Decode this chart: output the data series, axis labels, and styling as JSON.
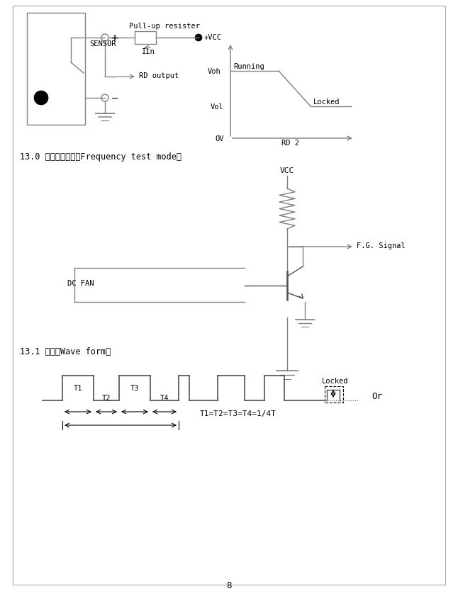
{
  "page_num": "8",
  "bg_color": "#ffffff",
  "line_color": "#808080",
  "dark_line_color": "#505050",
  "section1_label": "13.0 頻率測試方式（Frequency test mode）",
  "section2_label": "13.1 波形（Wave form）",
  "vcc_label": "VCC",
  "plus_label": "+",
  "minus_label": "—",
  "sensor_label": "SENSOR",
  "pullup_label": "Pull-up resister",
  "iin_label": "Iin",
  "rd_label": "RD output",
  "vcc_node_label": "+VCC",
  "voh_label": "Voh",
  "vol_label": "Vol",
  "ov_label": "OV",
  "running_label": "Running",
  "locked_label": "Locked",
  "rd2_label": "RD 2",
  "dcfan_label": "DC FAN",
  "fg_label": "F.G. Signal",
  "t1_label": "T1",
  "t2_label": "T2",
  "t3_label": "T3",
  "t4_label": "T4",
  "formula_label": "T1=T2=T3=T4=1/4T",
  "locked2_label": "Locked",
  "or_label": "Or"
}
